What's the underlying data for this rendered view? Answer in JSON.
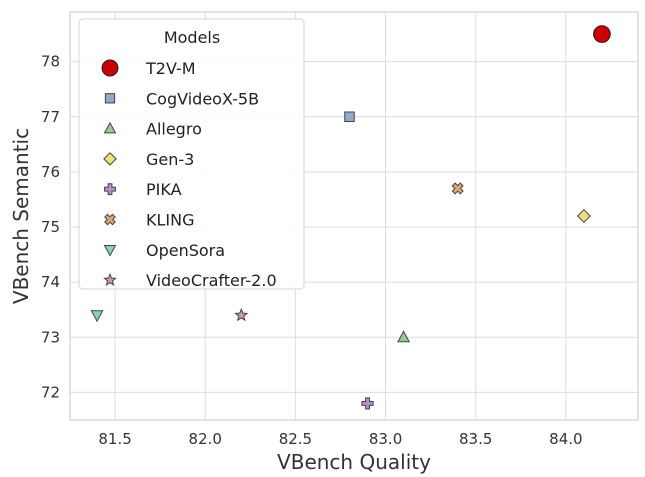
{
  "chart_data": {
    "type": "scatter",
    "title": "",
    "xlabel": "VBench Quality",
    "ylabel": "VBench Semantic",
    "xlim": [
      81.25,
      84.4
    ],
    "ylim": [
      71.5,
      78.9
    ],
    "xticks": [
      81.5,
      82.0,
      82.5,
      83.0,
      83.5,
      84.0
    ],
    "xtick_labels": [
      "81.5",
      "82.0",
      "82.5",
      "83.0",
      "83.5",
      "84.0"
    ],
    "yticks": [
      72,
      73,
      74,
      75,
      76,
      77,
      78
    ],
    "ytick_labels": [
      "72",
      "73",
      "74",
      "75",
      "76",
      "77",
      "78"
    ],
    "grid": true,
    "legend": {
      "title": "Models",
      "position": "top-left"
    },
    "series": [
      {
        "name": "T2V-M",
        "x": 84.2,
        "y": 78.5,
        "marker": "circle",
        "color": "#cc0000",
        "edge": "#222222"
      },
      {
        "name": "CogVideoX-5B",
        "x": 82.8,
        "y": 77.0,
        "marker": "square",
        "color": "#8fa9cf",
        "edge": "#444444"
      },
      {
        "name": "Allegro",
        "x": 83.1,
        "y": 73.0,
        "marker": "triangle-up",
        "color": "#8fcf8f",
        "edge": "#444444"
      },
      {
        "name": "Gen-3",
        "x": 84.1,
        "y": 75.2,
        "marker": "diamond",
        "color": "#f0dc82",
        "edge": "#444444"
      },
      {
        "name": "PIKA",
        "x": 82.9,
        "y": 71.8,
        "marker": "plus",
        "color": "#b48fd2",
        "edge": "#444444"
      },
      {
        "name": "KLING",
        "x": 83.4,
        "y": 75.7,
        "marker": "x",
        "color": "#e0a872",
        "edge": "#444444"
      },
      {
        "name": "OpenSora",
        "x": 81.4,
        "y": 73.4,
        "marker": "triangle-down",
        "color": "#86d0c8",
        "edge": "#444444"
      },
      {
        "name": "VideoCrafter-2.0",
        "x": 82.2,
        "y": 73.4,
        "marker": "star",
        "color": "#d19aa0",
        "edge": "#444444"
      }
    ]
  }
}
